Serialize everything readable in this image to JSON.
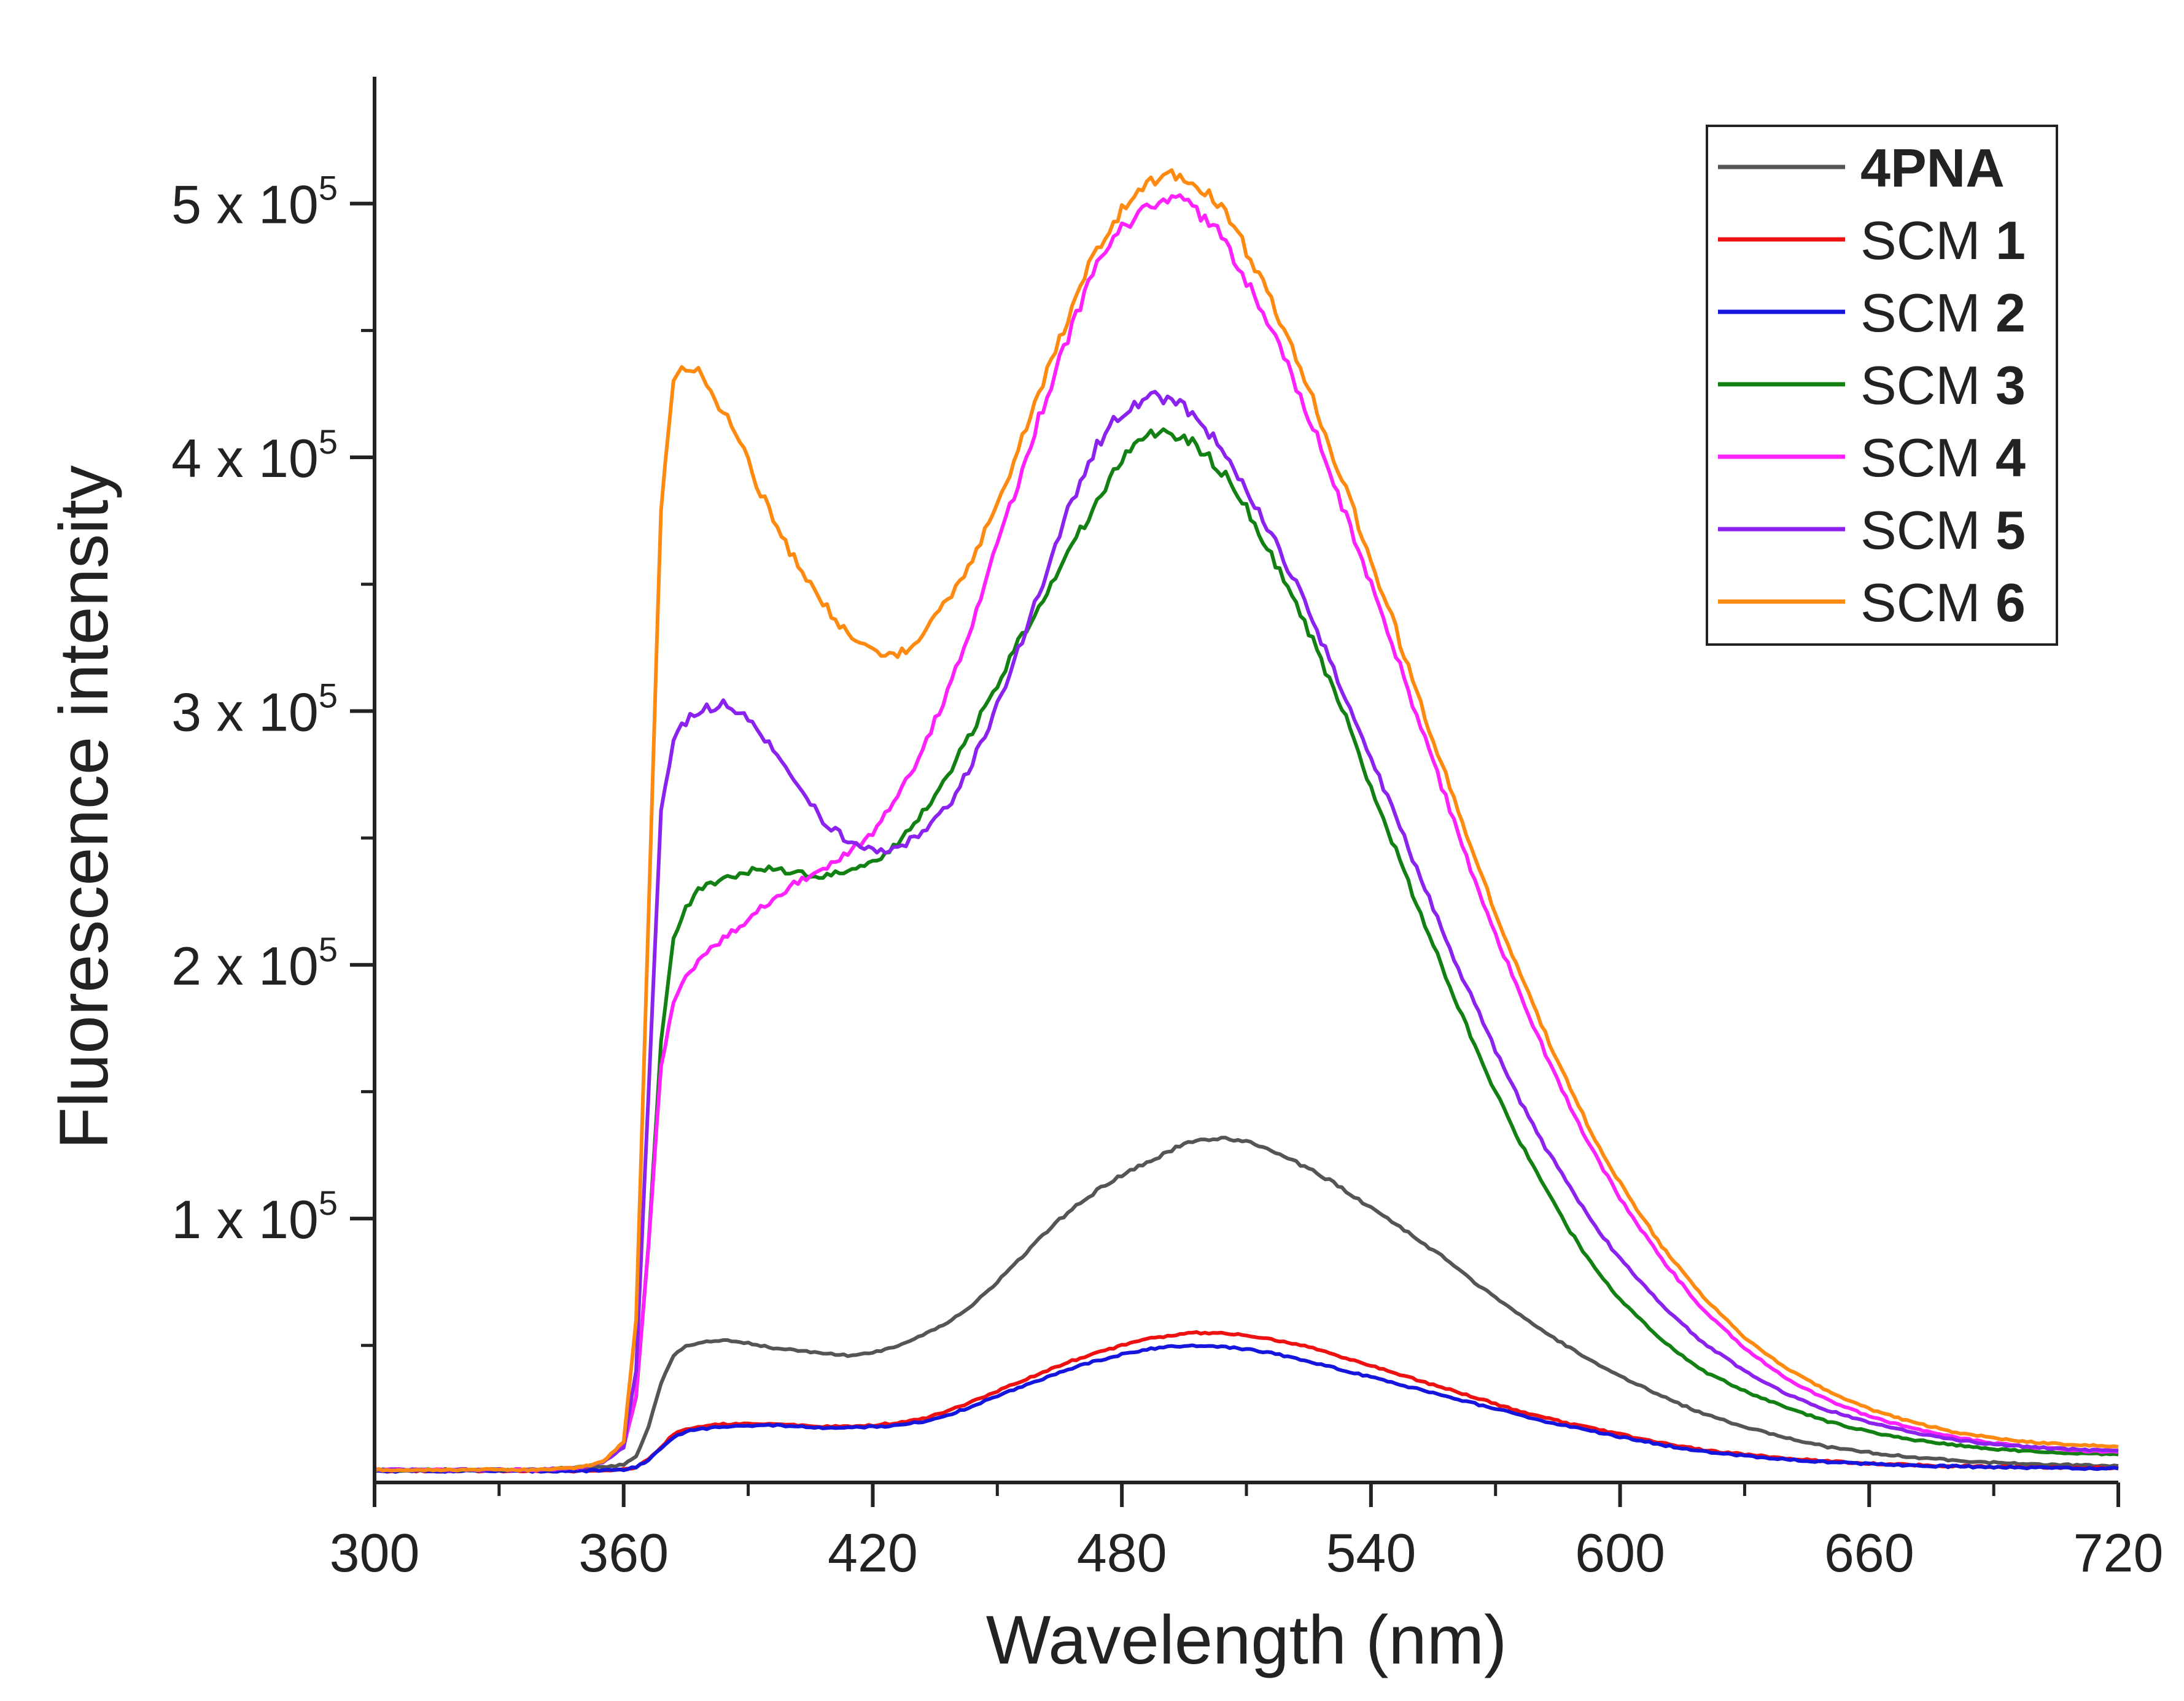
{
  "chart_data": {
    "type": "line",
    "title": "",
    "xlabel": "Wavelength (nm)",
    "ylabel": "Fluorescence intensity",
    "xlim": [
      300,
      720
    ],
    "ylim": [
      -4000,
      550000
    ],
    "x_ticks": [
      300,
      360,
      420,
      480,
      540,
      600,
      660,
      720
    ],
    "x_tick_labels": [
      "300",
      "360",
      "420",
      "480",
      "540",
      "600",
      "660",
      "720"
    ],
    "y_ticks": [
      100000,
      200000,
      300000,
      400000,
      500000
    ],
    "y_tick_labels": [
      {
        "mantissa": "1 x 10",
        "exp": "5"
      },
      {
        "mantissa": "2 x 10",
        "exp": "5"
      },
      {
        "mantissa": "3 x 10",
        "exp": "5"
      },
      {
        "mantissa": "4 x 10",
        "exp": "5"
      },
      {
        "mantissa": "5 x 10",
        "exp": "5"
      }
    ],
    "legend_position": "top-right",
    "x": [
      300,
      340,
      350,
      355,
      360,
      363,
      366,
      369,
      372,
      375,
      378,
      384,
      390,
      396,
      402,
      408,
      414,
      420,
      426,
      432,
      438,
      444,
      450,
      456,
      462,
      468,
      474,
      480,
      486,
      492,
      498,
      504,
      510,
      516,
      522,
      528,
      534,
      540,
      546,
      552,
      558,
      564,
      570,
      576,
      582,
      588,
      594,
      600,
      610,
      620,
      630,
      640,
      650,
      660,
      670,
      680,
      690,
      700,
      710,
      720
    ],
    "series": [
      {
        "name": "4PNA",
        "label_plain": "",
        "label_bold": "4PNA",
        "color": "#555555",
        "values": [
          1000,
          1000,
          1500,
          2000,
          3000,
          6000,
          18000,
          35000,
          46000,
          50000,
          51000,
          52000,
          51000,
          49000,
          48000,
          47000,
          46000,
          47000,
          50000,
          54000,
          59000,
          66000,
          75000,
          85000,
          95000,
          104000,
          111000,
          117000,
          122000,
          127000,
          131000,
          132000,
          130000,
          127000,
          122000,
          117000,
          111000,
          104000,
          98000,
          91000,
          84000,
          76000,
          69000,
          62000,
          55000,
          49000,
          43000,
          38000,
          30000,
          23000,
          18000,
          13500,
          10000,
          7800,
          6000,
          4800,
          3800,
          3200,
          2800,
          2500
        ]
      },
      {
        "name": "SCM 1",
        "label_plain": "SCM ",
        "label_bold": "1",
        "color": "#ee1111",
        "values": [
          500,
          500,
          600,
          700,
          1000,
          2000,
          5000,
          10000,
          15000,
          17000,
          18000,
          19000,
          19000,
          19000,
          18500,
          18000,
          18000,
          18500,
          19500,
          21000,
          24000,
          28000,
          32000,
          36000,
          40000,
          44000,
          47000,
          50000,
          52500,
          54000,
          55000,
          55000,
          54000,
          52500,
          50500,
          48000,
          45000,
          42000,
          39000,
          36000,
          33000,
          30000,
          27000,
          24000,
          21500,
          19000,
          17000,
          15000,
          11500,
          8800,
          7000,
          5500,
          4400,
          3500,
          2900,
          2500,
          2200,
          2000,
          1800,
          1700
        ]
      },
      {
        "name": "SCM 2",
        "label_plain": "SCM ",
        "label_bold": "2",
        "color": "#1515dd",
        "values": [
          500,
          500,
          600,
          700,
          1000,
          2000,
          5000,
          9500,
          14000,
          16000,
          17000,
          18000,
          18500,
          18500,
          18000,
          17500,
          17500,
          18000,
          18500,
          20000,
          22500,
          26000,
          30000,
          34000,
          37500,
          41000,
          44000,
          46500,
          48500,
          49500,
          50000,
          49500,
          48500,
          47000,
          45000,
          42500,
          40000,
          37500,
          35000,
          32500,
          30000,
          27500,
          25000,
          22500,
          20000,
          18000,
          16000,
          14000,
          10800,
          8300,
          6500,
          5100,
          4000,
          3300,
          2700,
          2300,
          2000,
          1800,
          1600,
          1500
        ]
      },
      {
        "name": "SCM 3",
        "label_plain": "SCM ",
        "label_bold": "3",
        "color": "#128012",
        "values": [
          1000,
          1000,
          2000,
          4000,
          10000,
          30000,
          90000,
          170000,
          210000,
          222000,
          230000,
          234000,
          237000,
          238000,
          236000,
          235000,
          236000,
          240000,
          248000,
          260000,
          275000,
          292000,
          310000,
          330000,
          348000,
          365000,
          383000,
          400000,
          408000,
          410000,
          405000,
          395000,
          380000,
          362000,
          342000,
          320000,
          297000,
          270000,
          245000,
          220000,
          196000,
          172000,
          150000,
          130000,
          112000,
          95000,
          80000,
          68000,
          52000,
          40000,
          32000,
          25500,
          20000,
          16000,
          13000,
          10800,
          9200,
          8200,
          7500,
          7000
        ]
      },
      {
        "name": "SCM 4",
        "label_plain": "SCM ",
        "label_bold": "4",
        "color": "#ff22ff",
        "values": [
          1000,
          1000,
          2000,
          4000,
          10000,
          30000,
          90000,
          160000,
          185000,
          195000,
          202000,
          210000,
          218000,
          226000,
          233000,
          238000,
          244000,
          252000,
          266000,
          285000,
          308000,
          335000,
          365000,
          395000,
          425000,
          452000,
          475000,
          490000,
          499000,
          502000,
          498000,
          487000,
          470000,
          450000,
          428000,
          404000,
          377000,
          350000,
          322000,
          294000,
          266000,
          238000,
          212000,
          188000,
          165000,
          144000,
          125000,
          108000,
          84000,
          64000,
          49000,
          37000,
          28500,
          22000,
          17500,
          14000,
          11500,
          9800,
          8700,
          8000
        ]
      },
      {
        "name": "SCM 5",
        "label_plain": "SCM ",
        "label_bold": "5",
        "color": "#8b22ee",
        "values": [
          1000,
          1000,
          2000,
          4000,
          10000,
          40000,
          150000,
          260000,
          290000,
          296000,
          300000,
          303000,
          298000,
          285000,
          270000,
          257000,
          249000,
          245000,
          246000,
          252000,
          262000,
          280000,
          302000,
          328000,
          356000,
          383000,
          405000,
          418000,
          424000,
          423000,
          416000,
          403000,
          388000,
          370000,
          350000,
          328000,
          305000,
          282000,
          258000,
          234000,
          210000,
          188000,
          166000,
          146000,
          128000,
          112000,
          97000,
          84000,
          66000,
          51000,
          40000,
          31000,
          24500,
          19500,
          15800,
          13000,
          11000,
          9800,
          9000,
          8500
        ]
      },
      {
        "name": "SCM 6",
        "label_plain": "SCM ",
        "label_bold": "6",
        "color": "#ff8a11",
        "values": [
          1000,
          1000,
          2000,
          4000,
          12000,
          60000,
          220000,
          380000,
          430000,
          436000,
          434000,
          418000,
          398000,
          375000,
          357000,
          342000,
          331000,
          323000,
          322000,
          330000,
          343000,
          360000,
          382000,
          407000,
          433000,
          460000,
          482000,
          498000,
          508000,
          512000,
          509000,
          498000,
          482000,
          462000,
          439000,
          414000,
          387000,
          360000,
          332000,
          303000,
          275000,
          247000,
          221000,
          196000,
          173000,
          151000,
          131000,
          114000,
          89000,
          69000,
          53000,
          41000,
          32000,
          25000,
          20000,
          16000,
          13500,
          11800,
          10800,
          10000
        ]
      }
    ]
  }
}
